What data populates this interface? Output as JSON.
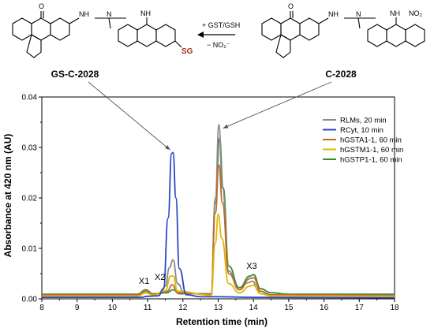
{
  "scheme": {
    "left_compound_label": "GS-C-2028",
    "right_compound_label": "C-2028",
    "reaction_top_label": "+ GST/GSH",
    "reaction_bottom_label": "− NO₂⁻",
    "atoms": {
      "oxygen": "O",
      "nh_left_1": "NH",
      "nh_left_2": "NH",
      "n_methyl_left": "N",
      "nh_right_1": "NH",
      "nh_right_2": "NH",
      "n_methyl_right": "N",
      "nitro": "NO₂",
      "sg": "SG"
    },
    "colors": {
      "sg": "#a0301c",
      "arrow": "#555555"
    }
  },
  "chart_data": {
    "type": "line",
    "xlabel": "Retention time (min)",
    "ylabel": "Absorbance at 420 nm (AU)",
    "xlim": [
      8,
      18
    ],
    "ylim": [
      0,
      0.04
    ],
    "xticks": [
      "8",
      "9",
      "10",
      "11",
      "12",
      "13",
      "14",
      "15",
      "16",
      "17",
      "18"
    ],
    "yticks": [
      "0.00",
      "0.01",
      "0.02",
      "0.03",
      "0.04"
    ],
    "grid": false,
    "legend_position": "top-right",
    "peak_labels": [
      {
        "text": "X1",
        "x": 10.9,
        "y": 0.0025
      },
      {
        "text": "X2",
        "x": 11.35,
        "y": 0.0033
      },
      {
        "text": "X3",
        "x": 13.95,
        "y": 0.0055
      }
    ],
    "series": [
      {
        "name": "RLMs, 20 min",
        "color": "#8a8a8a",
        "points": [
          [
            8,
            0.0008
          ],
          [
            10.7,
            0.0008
          ],
          [
            10.95,
            0.0016
          ],
          [
            11.15,
            0.0009
          ],
          [
            11.35,
            0.001
          ],
          [
            11.5,
            0.0025
          ],
          [
            11.62,
            0.0062
          ],
          [
            11.72,
            0.0077
          ],
          [
            11.85,
            0.003
          ],
          [
            12.05,
            0.001
          ],
          [
            12.8,
            0.001
          ],
          [
            12.92,
            0.02
          ],
          [
            13.02,
            0.0345
          ],
          [
            13.12,
            0.022
          ],
          [
            13.3,
            0.0055
          ],
          [
            13.6,
            0.0018
          ],
          [
            13.85,
            0.0032
          ],
          [
            13.97,
            0.0035
          ],
          [
            14.15,
            0.0015
          ],
          [
            14.5,
            0.0008
          ],
          [
            18,
            0.0007
          ]
        ]
      },
      {
        "name": "RCyt, 10 min",
        "color": "#2946c7",
        "points": [
          [
            8,
            0.0003
          ],
          [
            10.8,
            0.0003
          ],
          [
            11.0,
            0.0005
          ],
          [
            11.3,
            0.0006
          ],
          [
            11.45,
            0.002
          ],
          [
            11.58,
            0.016
          ],
          [
            11.68,
            0.0288
          ],
          [
            11.72,
            0.029
          ],
          [
            11.8,
            0.02
          ],
          [
            11.9,
            0.006
          ],
          [
            12.1,
            0.0008
          ],
          [
            12.5,
            0.0004
          ],
          [
            13.0,
            0.0004
          ],
          [
            14.0,
            0.0003
          ],
          [
            18,
            0.0002
          ]
        ]
      },
      {
        "name": "hGSTA1-1, 60 min",
        "color": "#c06a28",
        "points": [
          [
            8,
            0.0008
          ],
          [
            10.7,
            0.0008
          ],
          [
            10.95,
            0.0015
          ],
          [
            11.15,
            0.0009
          ],
          [
            11.55,
            0.0015
          ],
          [
            11.7,
            0.0028
          ],
          [
            11.85,
            0.0012
          ],
          [
            12.8,
            0.0009
          ],
          [
            12.92,
            0.017
          ],
          [
            13.02,
            0.0265
          ],
          [
            13.12,
            0.019
          ],
          [
            13.3,
            0.005
          ],
          [
            13.6,
            0.0018
          ],
          [
            13.9,
            0.004
          ],
          [
            14.0,
            0.0042
          ],
          [
            14.2,
            0.0015
          ],
          [
            14.5,
            0.0008
          ],
          [
            18,
            0.0007
          ]
        ]
      },
      {
        "name": "hGSTM1-1, 60 min",
        "color": "#e0b800",
        "points": [
          [
            8,
            0.0005
          ],
          [
            10.7,
            0.0005
          ],
          [
            10.95,
            0.0012
          ],
          [
            11.15,
            0.0007
          ],
          [
            11.5,
            0.0016
          ],
          [
            11.65,
            0.0045
          ],
          [
            11.72,
            0.0045
          ],
          [
            11.85,
            0.0015
          ],
          [
            12.8,
            0.0007
          ],
          [
            12.92,
            0.011
          ],
          [
            13.0,
            0.0168
          ],
          [
            13.1,
            0.012
          ],
          [
            13.3,
            0.003
          ],
          [
            13.6,
            0.0012
          ],
          [
            13.9,
            0.0025
          ],
          [
            14.0,
            0.0027
          ],
          [
            14.2,
            0.001
          ],
          [
            14.5,
            0.0006
          ],
          [
            18,
            0.0005
          ]
        ]
      },
      {
        "name": "hGSTP1-1, 60 min",
        "color": "#3a8a3a",
        "points": [
          [
            8,
            0.0009
          ],
          [
            10.7,
            0.0009
          ],
          [
            10.95,
            0.0018
          ],
          [
            11.15,
            0.001
          ],
          [
            11.55,
            0.0012
          ],
          [
            11.72,
            0.0018
          ],
          [
            11.9,
            0.001
          ],
          [
            12.8,
            0.001
          ],
          [
            12.92,
            0.019
          ],
          [
            13.04,
            0.0318
          ],
          [
            13.14,
            0.022
          ],
          [
            13.3,
            0.0065
          ],
          [
            13.6,
            0.0022
          ],
          [
            13.9,
            0.0045
          ],
          [
            14.0,
            0.0048
          ],
          [
            14.2,
            0.002
          ],
          [
            14.5,
            0.0012
          ],
          [
            15.0,
            0.0009
          ],
          [
            18,
            0.0009
          ]
        ]
      }
    ]
  }
}
